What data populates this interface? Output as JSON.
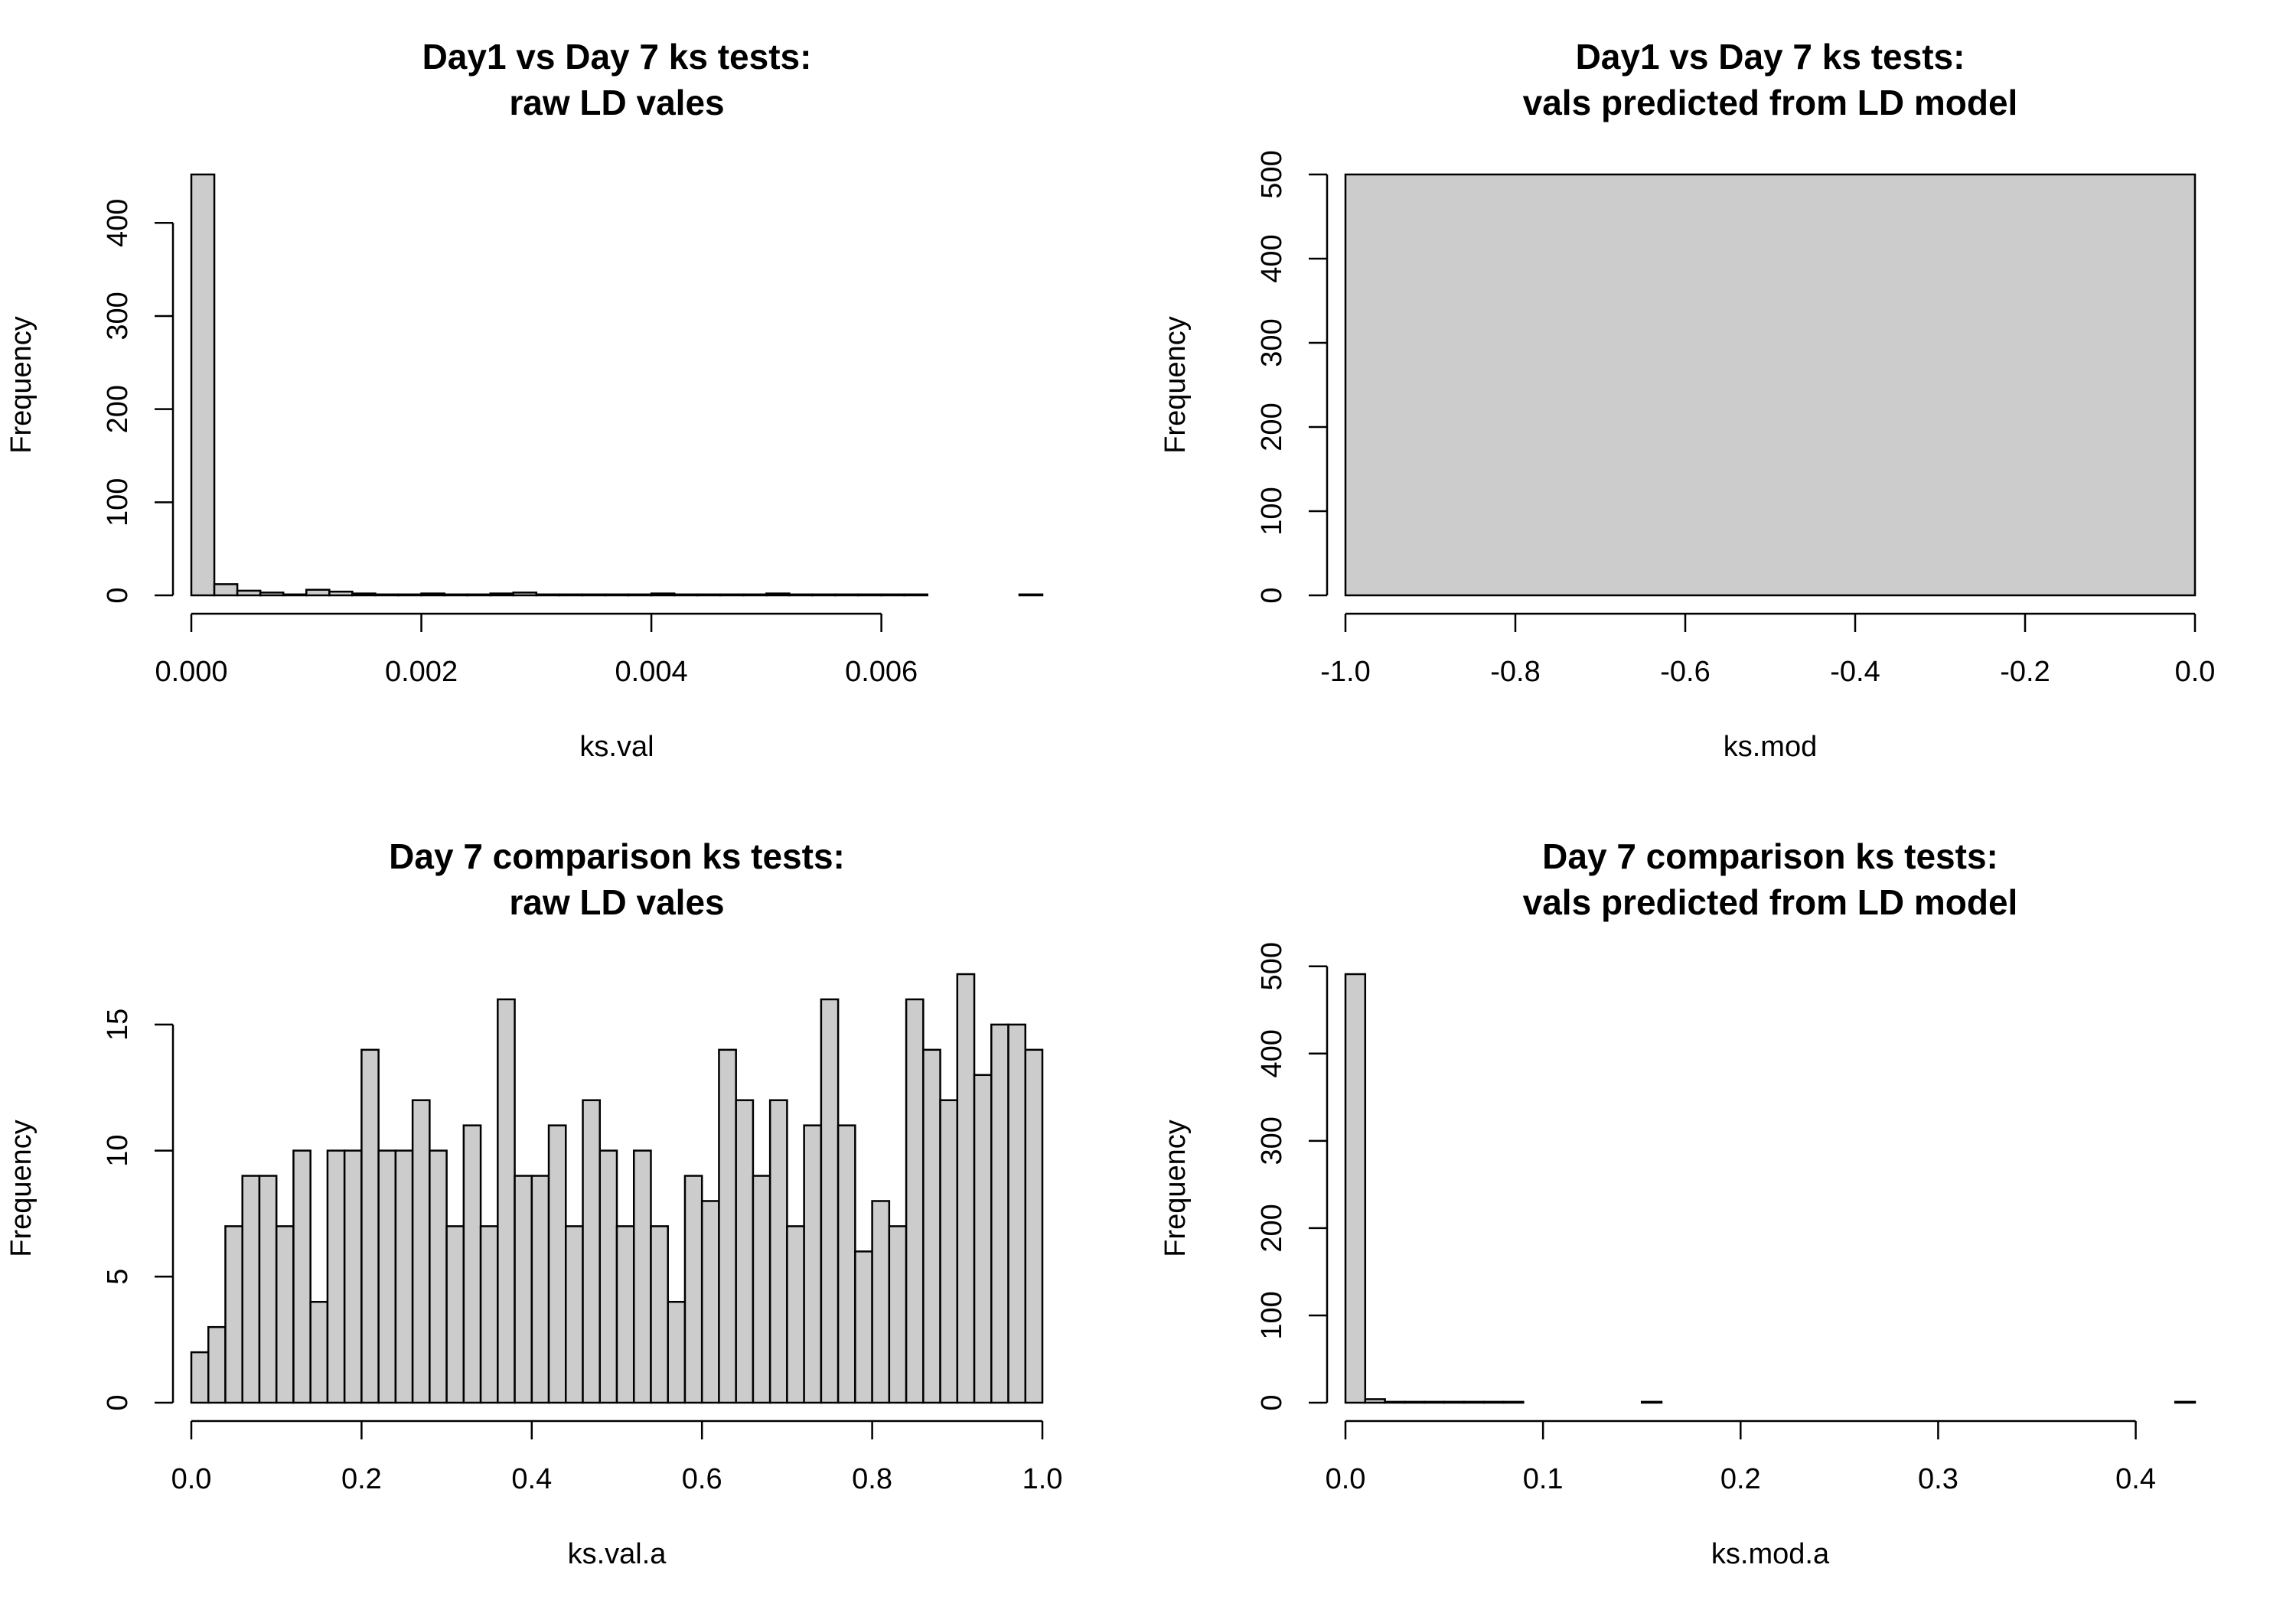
{
  "chart_data": [
    {
      "type": "bar",
      "title": [
        "Day1 vs Day 7 ks tests:",
        "raw LD vales"
      ],
      "xlabel": "ks.val",
      "ylabel": "Frequency",
      "x_ticks": [
        0,
        0.002,
        0.004,
        0.006
      ],
      "x_tick_labels": [
        "0.000",
        "0.002",
        "0.004",
        "0.006"
      ],
      "y_ticks": [
        0,
        100,
        200,
        300,
        400
      ],
      "y_tick_labels": [
        "0",
        "100",
        "200",
        "300",
        "400"
      ],
      "xlim": [
        0,
        0.0074
      ],
      "ylim": [
        0,
        452
      ],
      "bin_start": 0,
      "bin_width": 0.0002,
      "values": [
        452,
        12,
        5,
        3,
        1,
        6,
        4,
        2,
        1,
        1,
        2,
        1,
        1,
        2,
        3,
        1,
        1,
        1,
        1,
        1,
        2,
        1,
        1,
        1,
        1,
        2,
        1,
        1,
        1,
        1,
        1,
        1,
        0,
        0,
        0,
        0,
        1
      ]
    },
    {
      "type": "bar",
      "title": [
        "Day1 vs Day 7 ks tests:",
        "vals predicted from LD model"
      ],
      "xlabel": "ks.mod",
      "ylabel": "Frequency",
      "x_ticks": [
        -1,
        -0.8,
        -0.6,
        -0.4,
        -0.2,
        0
      ],
      "x_tick_labels": [
        "-1.0",
        "-0.8",
        "-0.6",
        "-0.4",
        "-0.2",
        "0.0"
      ],
      "y_ticks": [
        0,
        100,
        200,
        300,
        400,
        500
      ],
      "y_tick_labels": [
        "0",
        "100",
        "200",
        "300",
        "400",
        "500"
      ],
      "xlim": [
        -1,
        0
      ],
      "ylim": [
        0,
        500
      ],
      "bin_start": -1,
      "bin_width": 1,
      "values": [
        500
      ]
    },
    {
      "type": "bar",
      "title": [
        "Day 7 comparison ks tests:",
        "raw LD vales"
      ],
      "xlabel": "ks.val.a",
      "ylabel": "Frequency",
      "x_ticks": [
        0,
        0.2,
        0.4,
        0.6,
        0.8,
        1.0
      ],
      "x_tick_labels": [
        "0.0",
        "0.2",
        "0.4",
        "0.6",
        "0.8",
        "1.0"
      ],
      "y_ticks": [
        0,
        5,
        10,
        15
      ],
      "y_tick_labels": [
        "0",
        "5",
        "10",
        "15"
      ],
      "xlim": [
        0,
        1
      ],
      "ylim": [
        0,
        17
      ],
      "bin_start": 0,
      "bin_width": 0.02,
      "values": [
        2,
        3,
        7,
        9,
        9,
        7,
        10,
        4,
        10,
        10,
        14,
        10,
        10,
        12,
        10,
        7,
        11,
        7,
        16,
        9,
        9,
        11,
        7,
        12,
        10,
        7,
        10,
        7,
        4,
        9,
        8,
        14,
        12,
        9,
        12,
        7,
        11,
        16,
        11,
        6,
        8,
        7,
        16,
        14,
        12,
        17,
        13,
        15,
        15,
        14
      ]
    },
    {
      "type": "bar",
      "title": [
        "Day 7 comparison ks tests:",
        "vals predicted from LD model"
      ],
      "xlabel": "ks.mod.a",
      "ylabel": "Frequency",
      "x_ticks": [
        0,
        0.1,
        0.2,
        0.3,
        0.4
      ],
      "x_tick_labels": [
        "0.0",
        "0.1",
        "0.2",
        "0.3",
        "0.4"
      ],
      "y_ticks": [
        0,
        100,
        200,
        300,
        400,
        500
      ],
      "y_tick_labels": [
        "0",
        "100",
        "200",
        "300",
        "400",
        "500"
      ],
      "xlim": [
        0,
        0.43
      ],
      "ylim": [
        0,
        491
      ],
      "bin_start": 0,
      "bin_width": 0.01,
      "values": [
        491,
        4,
        1,
        1,
        1,
        1,
        1,
        1,
        1,
        0,
        0,
        0,
        0,
        0,
        0,
        1,
        0,
        0,
        0,
        0,
        0,
        0,
        0,
        0,
        0,
        0,
        0,
        0,
        0,
        0,
        0,
        0,
        0,
        0,
        0,
        0,
        0,
        0,
        0,
        0,
        0,
        0,
        1
      ]
    }
  ]
}
